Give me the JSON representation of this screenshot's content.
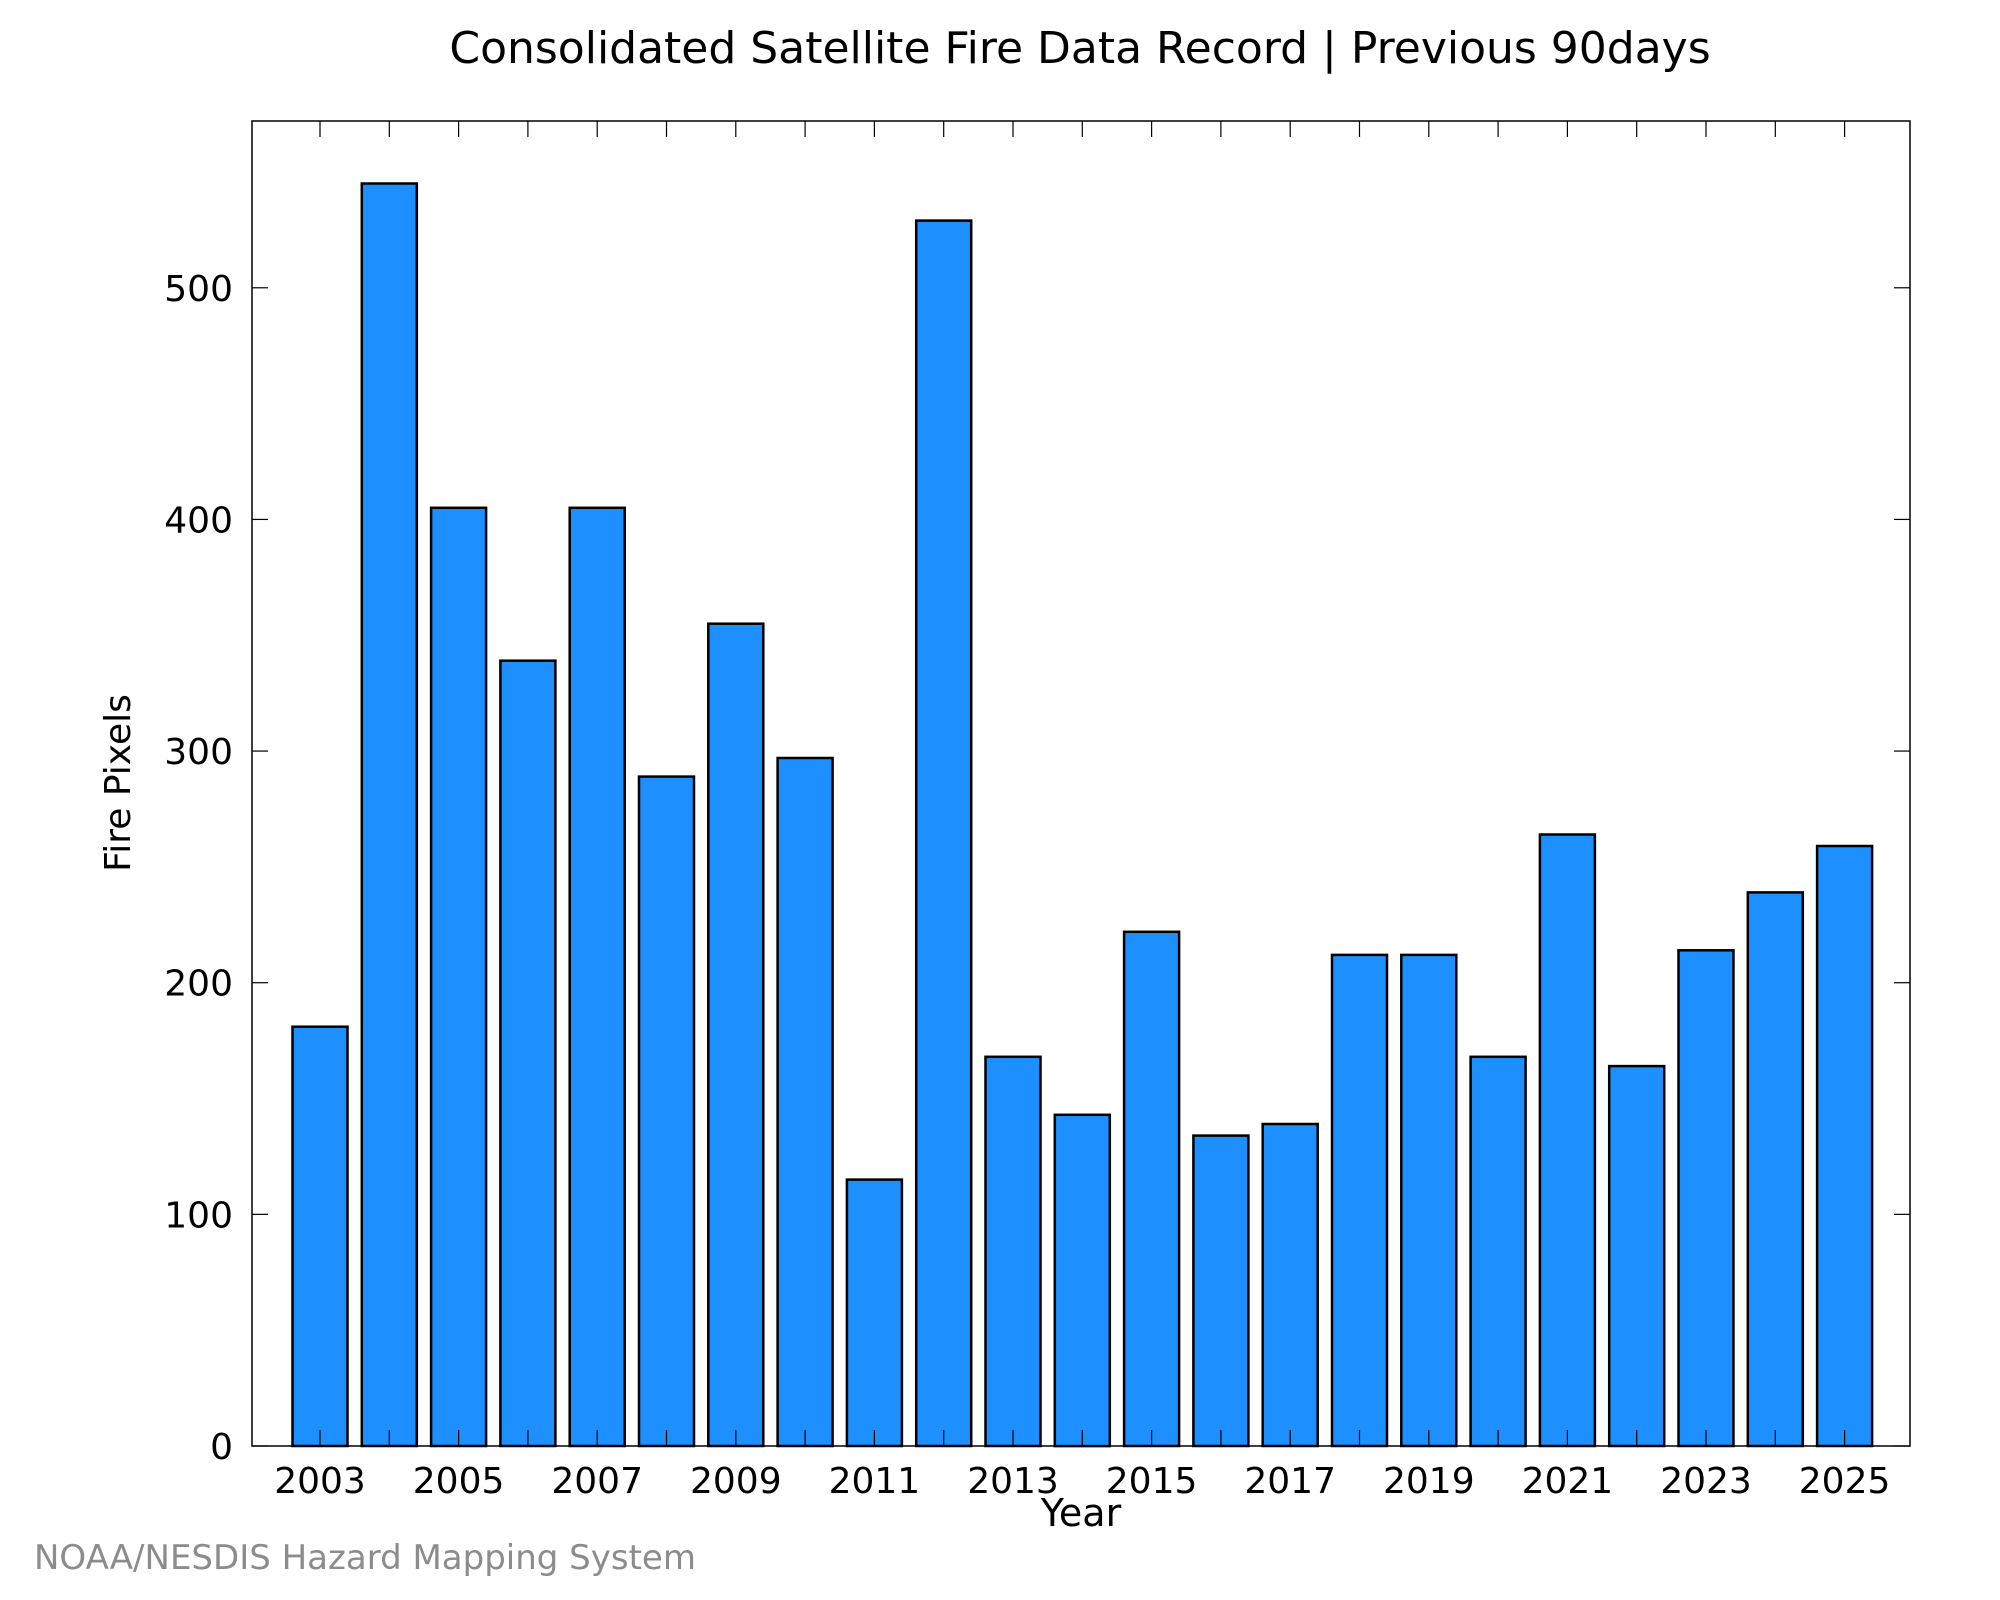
{
  "chart_data": {
    "type": "bar",
    "title": "Consolidated Satellite Fire Data Record | Previous 90days",
    "xlabel": "Year",
    "ylabel": "Fire Pixels",
    "categories": [
      "2003",
      "2004",
      "2005",
      "2006",
      "2007",
      "2008",
      "2009",
      "2010",
      "2011",
      "2012",
      "2013",
      "2014",
      "2015",
      "2016",
      "2017",
      "2018",
      "2019",
      "2020",
      "2021",
      "2022",
      "2023",
      "2024",
      "2025"
    ],
    "values": [
      181,
      545,
      405,
      339,
      405,
      289,
      355,
      297,
      115,
      529,
      168,
      143,
      222,
      134,
      139,
      212,
      212,
      168,
      264,
      164,
      214,
      239,
      259
    ],
    "xtick_labels": [
      "2003",
      "2005",
      "2007",
      "2009",
      "2011",
      "2013",
      "2015",
      "2017",
      "2019",
      "2021",
      "2023",
      "2025"
    ],
    "yticks": [
      0,
      100,
      200,
      300,
      400,
      500
    ],
    "ylim": [
      0,
      572
    ],
    "bar_color": "#1e8fff",
    "grid": false,
    "legend": "none"
  },
  "footer": {
    "credit": "NOAA/NESDIS Hazard Mapping System"
  }
}
